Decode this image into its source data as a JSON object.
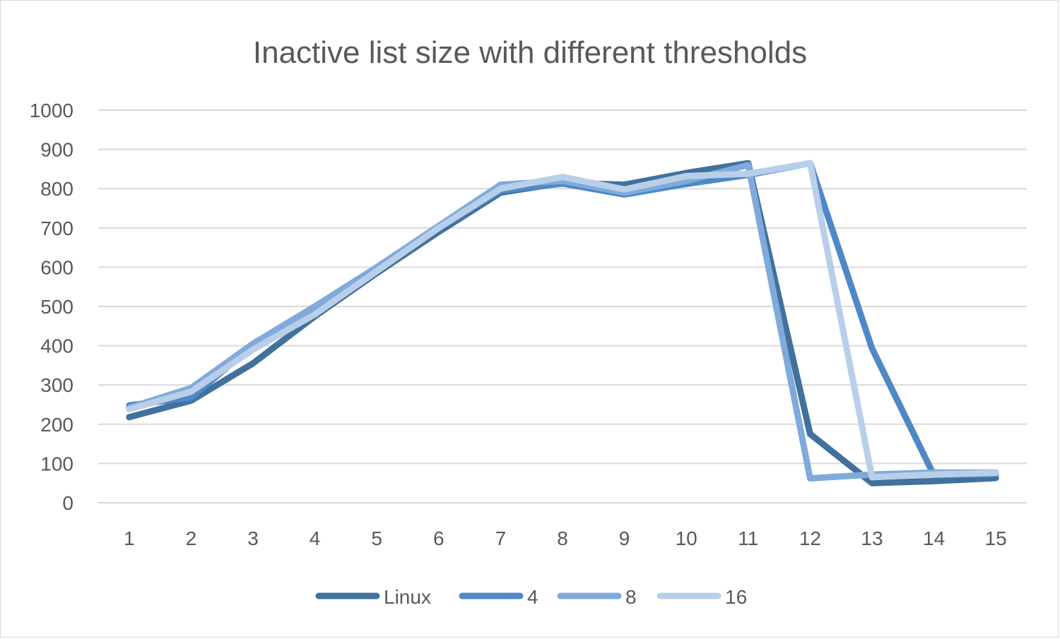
{
  "chart_data": {
    "type": "line",
    "title": "Inactive list size with different thresholds",
    "xlabel": "",
    "ylabel": "",
    "categories": [
      "1",
      "2",
      "3",
      "4",
      "5",
      "6",
      "7",
      "8",
      "9",
      "10",
      "11",
      "12",
      "13",
      "14",
      "15"
    ],
    "y_ticks": [
      "0",
      "100",
      "200",
      "300",
      "400",
      "500",
      "600",
      "700",
      "800",
      "900",
      "1000"
    ],
    "ylim": [
      0,
      1000
    ],
    "grid": true,
    "legend_position": "bottom",
    "series": [
      {
        "name": "Linux",
        "color": "#41719c",
        "values": [
          218,
          260,
          355,
          475,
          585,
          690,
          790,
          815,
          810,
          840,
          865,
          175,
          50,
          55,
          63
        ]
      },
      {
        "name": "4",
        "color": "#4f88c6",
        "values": [
          248,
          268,
          400,
          490,
          595,
          700,
          795,
          813,
          785,
          812,
          835,
          865,
          393,
          70,
          73
        ]
      },
      {
        "name": "8",
        "color": "#7faadb",
        "values": [
          242,
          292,
          405,
          500,
          600,
          705,
          810,
          820,
          790,
          820,
          860,
          62,
          72,
          77,
          77
        ]
      },
      {
        "name": "16",
        "color": "#b9cfe9",
        "values": [
          238,
          283,
          390,
          480,
          590,
          700,
          800,
          830,
          798,
          832,
          838,
          865,
          65,
          72,
          76
        ]
      }
    ]
  }
}
